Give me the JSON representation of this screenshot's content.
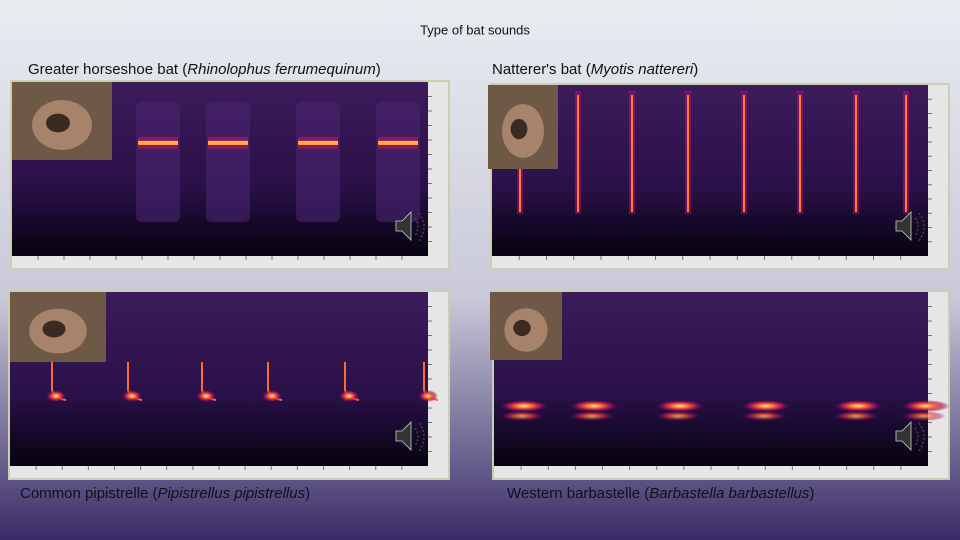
{
  "title": "Type of bat sounds",
  "panels": [
    {
      "prefix": "Greater horseshoe bat (",
      "scientific": "Rhinolophus ferrumequinum",
      "suffix": ")"
    },
    {
      "prefix": "Natterer's bat (",
      "scientific": "Myotis nattereri",
      "suffix": ")"
    },
    {
      "prefix": "Common pipistrelle (",
      "scientific": "Pipistrellus pipistrellus",
      "suffix": ")"
    },
    {
      "prefix": "Western barbastelle (",
      "scientific": "Barbastella barbastellus",
      "suffix": ")"
    }
  ]
}
